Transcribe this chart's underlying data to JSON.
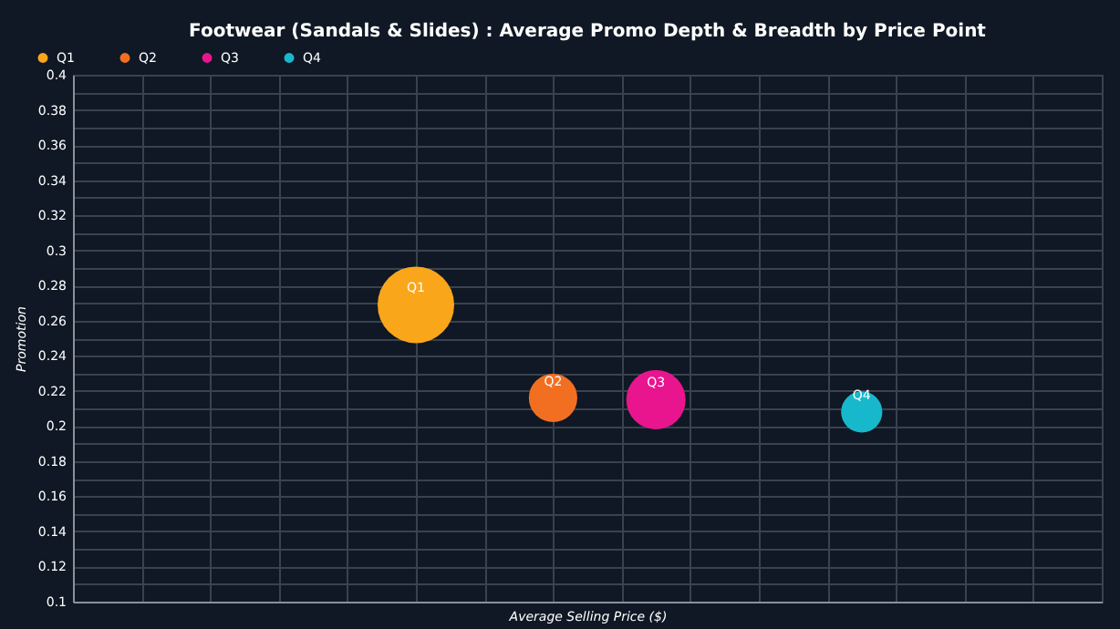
{
  "chart_data": {
    "type": "bubble",
    "title": "Footwear (Sandals & Slides) : Average Promo Depth & Breadth by Price Point",
    "xlabel": "Average Selling Price ($)",
    "ylabel": "Promotion",
    "categories": [
      null,
      null,
      null,
      null,
      null,
      null,
      null,
      null,
      null,
      null,
      null,
      null,
      null,
      null,
      null,
      null,
      null,
      null,
      null,
      null,
      null,
      null,
      null,
      null,
      null,
      null,
      null,
      null,
      null,
      null,
      null
    ],
    "series": [
      {
        "name": "Q1",
        "color": "#f9a61b",
        "values": [
          null,
          null,
          null,
          null,
          null,
          null,
          null,
          null,
          null,
          null,
          0.269,
          null,
          null,
          null,
          null,
          null,
          null,
          null,
          null,
          null,
          null,
          null,
          null,
          null,
          null,
          null,
          null,
          null,
          null,
          null,
          null
        ],
        "sizes": [
          null,
          null,
          null,
          null,
          null,
          null,
          null,
          null,
          null,
          null,
          1,
          null,
          null,
          null,
          null,
          null,
          null,
          null,
          null,
          null,
          null,
          null,
          null,
          null,
          null,
          null,
          null,
          null,
          null,
          null,
          null
        ]
      },
      {
        "name": "Q2",
        "color": "#f26f21",
        "values": [
          null,
          null,
          null,
          null,
          null,
          null,
          null,
          null,
          null,
          null,
          null,
          null,
          null,
          null,
          0.216,
          null,
          null,
          null,
          null,
          null,
          null,
          null,
          null,
          null,
          null,
          null,
          null,
          null,
          null,
          null,
          null
        ],
        "sizes": [
          null,
          null,
          null,
          null,
          null,
          null,
          null,
          null,
          null,
          null,
          null,
          null,
          null,
          null,
          0.4,
          null,
          null,
          null,
          null,
          null,
          null,
          null,
          null,
          null,
          null,
          null,
          null,
          null,
          null,
          null,
          null
        ]
      },
      {
        "name": "Q3",
        "color": "#e8158f",
        "values": [
          null,
          null,
          null,
          null,
          null,
          null,
          null,
          null,
          null,
          null,
          null,
          null,
          null,
          null,
          null,
          null,
          null,
          0.215,
          null,
          null,
          null,
          null,
          null,
          null,
          null,
          null,
          null,
          null,
          null,
          null,
          null
        ],
        "sizes": [
          null,
          null,
          null,
          null,
          null,
          null,
          null,
          null,
          null,
          null,
          null,
          null,
          null,
          null,
          null,
          null,
          null,
          0.6,
          null,
          null,
          null,
          null,
          null,
          null,
          null,
          null,
          null,
          null,
          null,
          null,
          null
        ]
      },
      {
        "name": "Q4",
        "color": "#18b8cc",
        "values": [
          null,
          null,
          null,
          null,
          null,
          null,
          null,
          null,
          null,
          null,
          null,
          null,
          null,
          null,
          null,
          null,
          null,
          null,
          null,
          null,
          null,
          null,
          null,
          0.208,
          null,
          null,
          null,
          null,
          null,
          null,
          null
        ],
        "sizes": [
          null,
          null,
          null,
          null,
          null,
          null,
          null,
          null,
          null,
          null,
          null,
          null,
          null,
          null,
          null,
          null,
          null,
          null,
          null,
          null,
          null,
          null,
          null,
          0.29,
          null,
          null,
          null,
          null,
          null,
          null,
          null
        ]
      }
    ],
    "ylim": [
      0.1,
      0.4
    ],
    "yticks": [
      0.1,
      {
        "value": 0.11,
        "label": null
      },
      0.12,
      {
        "value": 0.13,
        "label": null
      },
      0.14,
      {
        "value": 0.15,
        "label": null
      },
      0.16,
      {
        "value": 0.17,
        "label": null
      },
      0.18,
      {
        "value": 0.19,
        "label": null
      },
      0.2,
      {
        "value": 0.21,
        "label": null
      },
      0.22,
      {
        "value": 0.23,
        "label": null
      },
      0.24,
      {
        "value": 0.25,
        "label": null
      },
      0.26,
      {
        "value": 0.27,
        "label": null
      },
      0.28,
      {
        "value": 0.29,
        "label": null
      },
      0.3,
      {
        "value": 0.31,
        "label": null
      },
      0.32,
      {
        "value": 0.33,
        "label": null
      },
      0.34,
      {
        "value": 0.35,
        "label": null
      },
      0.36,
      {
        "value": 0.37,
        "label": null
      },
      0.38,
      {
        "value": 0.39,
        "label": null
      },
      0.4
    ],
    "grid": true,
    "legend": "top left",
    "tick_labels": "y"
  }
}
